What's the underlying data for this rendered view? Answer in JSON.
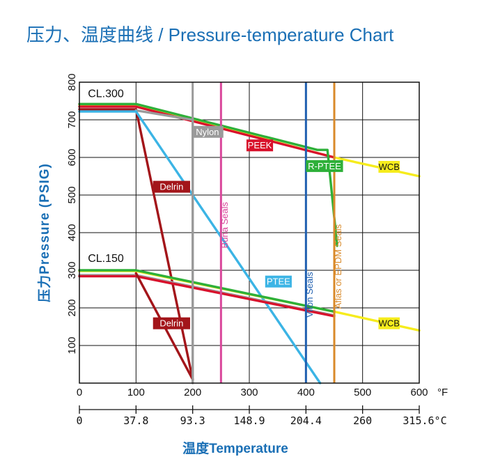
{
  "title": "压力、温度曲线 / Pressure-temperature Chart",
  "colors": {
    "accent": "#1a6fb5",
    "cl300_green": "#2eb039",
    "cl300_red": "#d8112c",
    "wcb": "#f6ec1d",
    "delrin": "#a3151a",
    "nylon": "#9a9a9a",
    "ptfe": "#3bb4e5",
    "buna": "#d9479b",
    "peek": "#d8112c",
    "r_ptfe": "#2eb039",
    "viton": "#1f5fb0",
    "aflas_epdm": "#d98a2a",
    "cl150_gray": "#a0a0a0"
  },
  "chart_data": {
    "type": "line",
    "title": "压力、温度曲线 / Pressure-temperature Chart",
    "ylabel": "压力Pressure (PSIG)",
    "xlabel": "温度Temperature",
    "xlim": [
      0,
      600
    ],
    "ylim": [
      0,
      800
    ],
    "x_unit": "°F",
    "x2_unit": "°C",
    "x_ticks": [
      "0",
      "100",
      "200",
      "300",
      "400",
      "500",
      "600"
    ],
    "x2_ticks": [
      "0",
      "37.8",
      "93.3",
      "148.9",
      "204.4",
      "260",
      "315.6"
    ],
    "x2_tick_positions_F": [
      0,
      100,
      200,
      300,
      400,
      500,
      600
    ],
    "y_ticks": [
      "100",
      "200",
      "300",
      "400",
      "500",
      "600",
      "700",
      "800"
    ],
    "grid": true,
    "class_labels": [
      {
        "text": "CL.300",
        "x": 15,
        "y": 760
      },
      {
        "text": "CL.150",
        "x": 15,
        "y": 322
      }
    ],
    "series": [
      {
        "name": "WCB",
        "key": "wcb",
        "x": [
          0,
          100,
          450,
          600
        ],
        "y": [
          740,
          740,
          600,
          550
        ]
      },
      {
        "name": "PEEK",
        "key": "peek",
        "x": [
          0,
          100,
          450
        ],
        "y": [
          735,
          735,
          600
        ]
      },
      {
        "name": "R-PTEE",
        "key": "r_ptfe",
        "x": [
          0,
          100,
          420,
          438,
          455
        ],
        "y": [
          742,
          742,
          620,
          620,
          365
        ]
      },
      {
        "name": "Delrin",
        "key": "delrin",
        "x": [
          0,
          100,
          200
        ],
        "y": [
          728,
          728,
          10
        ]
      },
      {
        "name": "Nylon",
        "key": "nylon",
        "x": [
          100,
          200,
          200
        ],
        "y": [
          725,
          700,
          0
        ]
      },
      {
        "name": "PTEE",
        "key": "ptfe",
        "x": [
          0,
          100,
          425
        ],
        "y": [
          722,
          722,
          0
        ]
      },
      {
        "name": "WCB",
        "key": "wcb",
        "x": [
          0,
          100,
          450,
          600
        ],
        "y": [
          298,
          298,
          190,
          140
        ]
      },
      {
        "name": "",
        "key": "cl300_green",
        "x": [
          0,
          100,
          450
        ],
        "y": [
          300,
          300,
          190
        ]
      },
      {
        "name": "",
        "key": "cl150_gray",
        "x": [
          0,
          100,
          450
        ],
        "y": [
          287,
          287,
          180
        ]
      },
      {
        "name": "",
        "key": "cl300_red",
        "x": [
          0,
          100,
          450
        ],
        "y": [
          284,
          284,
          178
        ]
      },
      {
        "name": "Delrin",
        "key": "delrin",
        "x": [
          100,
          200
        ],
        "y": [
          292,
          10
        ]
      }
    ],
    "vertical_lines": [
      {
        "name": "Nylon",
        "key": "nylon",
        "x": 200
      },
      {
        "name": "Buna Seals",
        "key": "buna",
        "x": 250
      },
      {
        "name": "Viton Seals",
        "key": "viton",
        "x": 400
      },
      {
        "name": "Aflas or EPDM Seals",
        "key": "aflas_epdm",
        "x": 450
      }
    ],
    "labels": [
      {
        "text": "Nylon",
        "key": "nylon",
        "x": 198,
        "y": 668
      },
      {
        "text": "PEEK",
        "key": "peek",
        "x": 295,
        "y": 632
      },
      {
        "text": "R-PTEE",
        "key": "r_ptfe",
        "x": 400,
        "y": 577
      },
      {
        "text": "WCB",
        "key": "wcb",
        "x": 528,
        "y": 575
      },
      {
        "text": "Delrin",
        "key": "delrin",
        "x": 130,
        "y": 522
      },
      {
        "text": "PTEE",
        "key": "ptfe",
        "x": 328,
        "y": 270
      },
      {
        "text": "WCB",
        "key": "wcb",
        "x": 528,
        "y": 159
      },
      {
        "text": "Delrin",
        "key": "delrin",
        "x": 130,
        "y": 159
      }
    ],
    "vertical_labels": [
      {
        "text": "Buna Seals",
        "key": "buna",
        "x": 262,
        "y": 420
      },
      {
        "text": "Viton Seals",
        "key": "viton",
        "x": 412,
        "y": 235
      },
      {
        "text": "Aflas or EPDM Seals",
        "key": "aflas_epdm",
        "x": 462,
        "y": 310
      }
    ]
  }
}
